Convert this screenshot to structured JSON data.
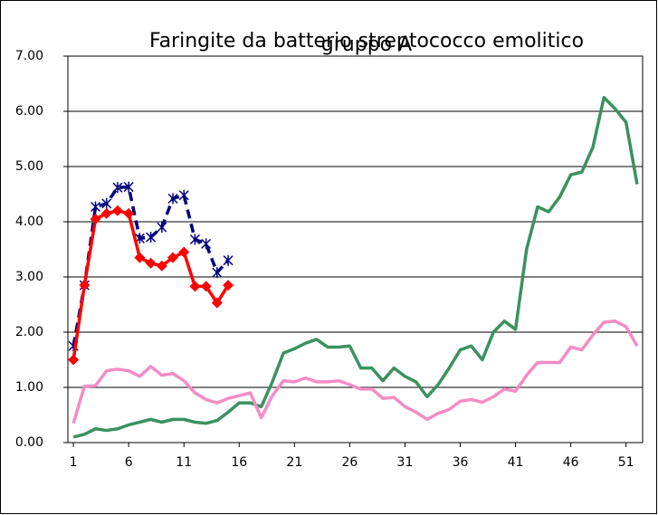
{
  "chart_data": {
    "type": "line",
    "title": [
      "Faringite da batterio streptococco emolitico",
      "gruppo A"
    ],
    "x": [
      1,
      2,
      3,
      4,
      5,
      6,
      7,
      8,
      9,
      10,
      11,
      12,
      13,
      14,
      15,
      16,
      17,
      18,
      19,
      20,
      21,
      22,
      23,
      24,
      25,
      26,
      27,
      28,
      29,
      30,
      31,
      32,
      33,
      34,
      35,
      36,
      37,
      38,
      39,
      40,
      41,
      42,
      43,
      44,
      45,
      46,
      47,
      48,
      49,
      50,
      51,
      52
    ],
    "xlim": [
      0.5,
      52.5
    ],
    "xticks": [
      1,
      6,
      11,
      16,
      21,
      26,
      31,
      36,
      41,
      46,
      51
    ],
    "ylim": [
      0,
      7
    ],
    "yticks": [
      {
        "value": 0,
        "label": "0.00"
      },
      {
        "value": 1,
        "label": "1.00"
      },
      {
        "value": 2,
        "label": "2.00"
      },
      {
        "value": 3,
        "label": "3.00"
      },
      {
        "value": 4,
        "label": "4.00"
      },
      {
        "value": 5,
        "label": "5.00"
      },
      {
        "value": 6,
        "label": "6.00"
      },
      {
        "value": 7,
        "label": "7.00"
      }
    ],
    "grid": true,
    "series": [
      {
        "color": "#3a9160",
        "values": [
          0.1,
          0.15,
          0.25,
          0.22,
          0.25,
          0.32,
          0.37,
          0.42,
          0.37,
          0.42,
          0.42,
          0.37,
          0.35,
          0.4,
          0.55,
          0.72,
          0.72,
          0.65,
          1.1,
          1.62,
          1.7,
          1.8,
          1.87,
          1.73,
          1.73,
          1.75,
          1.35,
          1.35,
          1.12,
          1.35,
          1.2,
          1.1,
          0.83,
          1.05,
          1.35,
          1.68,
          1.75,
          1.5,
          2.0,
          2.2,
          2.05,
          3.5,
          4.27,
          4.18,
          4.45,
          4.85,
          4.9,
          5.35,
          6.25,
          6.05,
          5.8,
          4.68
        ]
      },
      {
        "color": "#f48cc4",
        "values": [
          0.35,
          1.02,
          1.03,
          1.3,
          1.33,
          1.3,
          1.2,
          1.38,
          1.22,
          1.25,
          1.12,
          0.9,
          0.78,
          0.72,
          0.8,
          0.85,
          0.9,
          0.45,
          0.85,
          1.12,
          1.1,
          1.17,
          1.1,
          1.1,
          1.12,
          1.05,
          0.97,
          0.97,
          0.8,
          0.82,
          0.65,
          0.55,
          0.42,
          0.53,
          0.6,
          0.75,
          0.78,
          0.73,
          0.83,
          0.97,
          0.93,
          1.22,
          1.45,
          1.45,
          1.45,
          1.73,
          1.68,
          1.95,
          2.18,
          2.2,
          2.1,
          1.75
        ]
      },
      {
        "color": "#000080",
        "dash": true,
        "marker": "asterisk",
        "values": [
          1.75,
          2.85,
          4.27,
          4.33,
          4.62,
          4.63,
          3.7,
          3.72,
          3.9,
          4.42,
          4.48,
          3.68,
          3.6,
          3.08,
          3.3,
          null,
          null,
          null,
          null,
          null,
          null,
          null,
          null,
          null,
          null,
          null,
          null,
          null,
          null,
          null,
          null,
          null,
          null,
          null,
          null,
          null,
          null,
          null,
          null,
          null,
          null,
          null,
          null,
          null,
          null,
          null,
          null,
          null,
          null,
          null,
          null,
          null
        ]
      },
      {
        "color": "#ff0000",
        "marker": "diamond",
        "values": [
          1.5,
          2.85,
          4.05,
          4.15,
          4.2,
          4.15,
          3.35,
          3.25,
          3.2,
          3.35,
          3.45,
          2.83,
          2.83,
          2.53,
          2.85,
          null,
          null,
          null,
          null,
          null,
          null,
          null,
          null,
          null,
          null,
          null,
          null,
          null,
          null,
          null,
          null,
          null,
          null,
          null,
          null,
          null,
          null,
          null,
          null,
          null,
          null,
          null,
          null,
          null,
          null,
          null,
          null,
          null,
          null,
          null,
          null,
          null
        ]
      }
    ]
  }
}
